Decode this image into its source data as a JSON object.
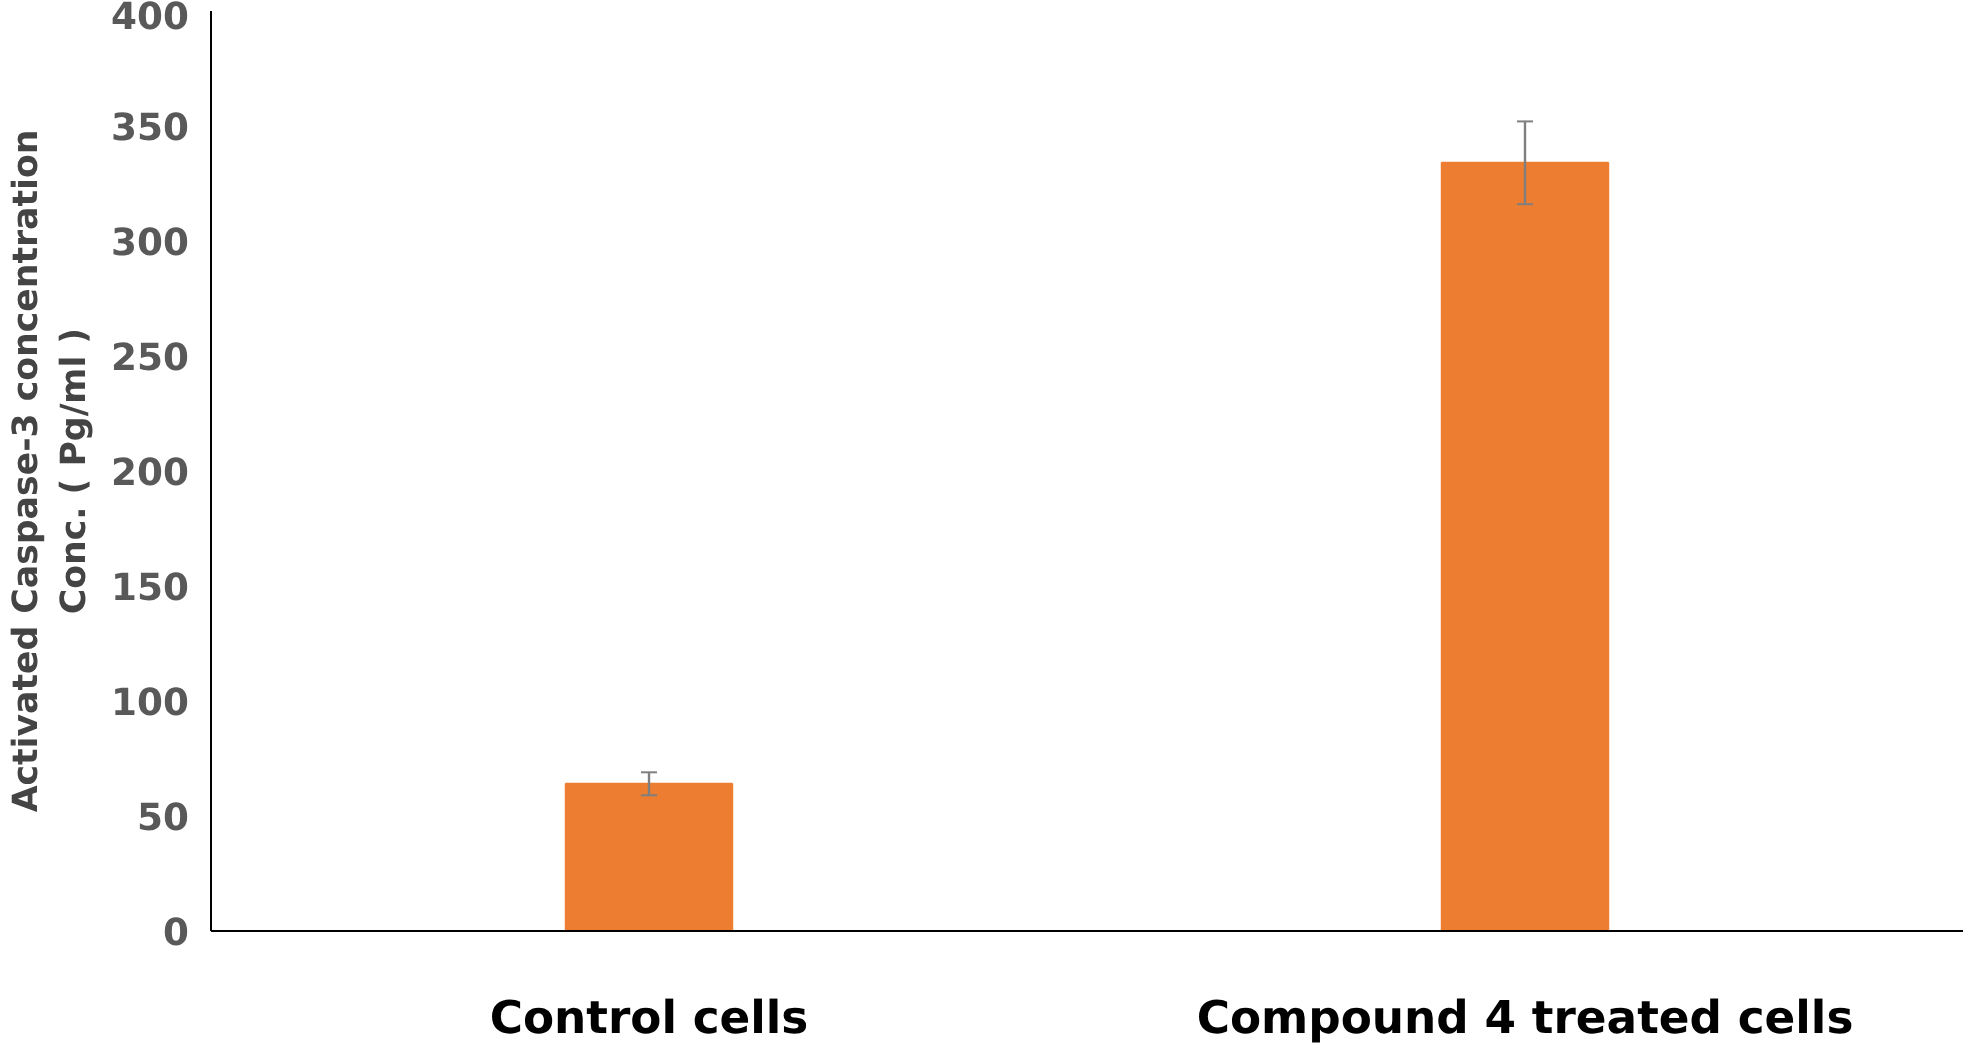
{
  "chart_data": {
    "type": "bar",
    "ylabel": "Activated Caspase-3 concentration\nConc. ( Pg/ml )",
    "categories": [
      "Control cells",
      "Compound 4 treated cells"
    ],
    "values": [
      64,
      334
    ],
    "errors": [
      5,
      18
    ],
    "color": "#ed7d31",
    "ylim": [
      0,
      400
    ],
    "yticks": [
      0,
      50,
      100,
      150,
      200,
      250,
      300,
      350,
      400
    ],
    "grid": false
  }
}
